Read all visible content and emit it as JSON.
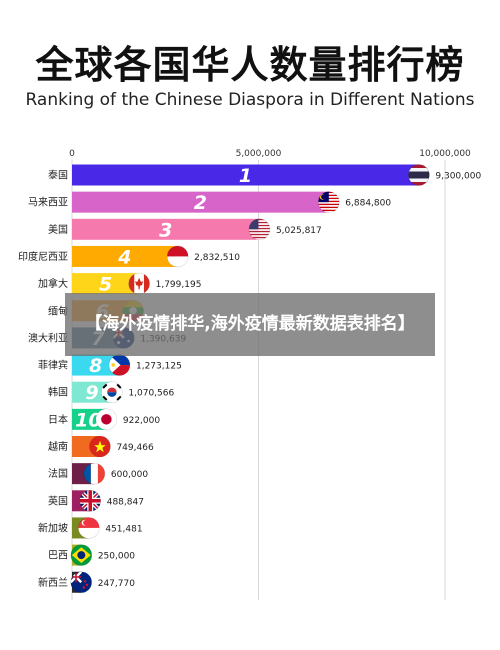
{
  "header": {
    "title_zh": "全球各国华人数量排行榜",
    "title_en": "Ranking of the Chinese Diaspora in Different Nations"
  },
  "overlay": {
    "text": "【海外疫情排华,海外疫情最新数据表排名】"
  },
  "chart_data": {
    "type": "bar",
    "orientation": "horizontal",
    "title": "Ranking of the Chinese Diaspora in Different Nations",
    "xlim": [
      0,
      10000000
    ],
    "xticks": [
      "0",
      "5,000,000",
      "10,000,000"
    ],
    "grid": true,
    "categories": [
      "泰国",
      "马来西亚",
      "美国",
      "印度尼西亚",
      "加拿大",
      "缅甸",
      "澳大利亚",
      "菲律宾",
      "韩国",
      "日本",
      "越南",
      "法国",
      "英国",
      "新加坡",
      "巴西",
      "新西兰"
    ],
    "ranks": [
      "1",
      "2",
      "3",
      "4",
      "5",
      "6",
      "7",
      "8",
      "9",
      "10",
      "",
      "",
      "",
      "",
      "",
      ""
    ],
    "values": [
      9300000,
      6884800,
      5025817,
      2832510,
      1799195,
      1637540,
      1390639,
      1273125,
      1070566,
      922000,
      749466,
      600000,
      488847,
      451481,
      250000,
      247770
    ],
    "value_labels": [
      "9,300,000",
      "6,884,800",
      "5,025,817",
      "2,832,510",
      "1,799,195",
      "",
      "1,390,639",
      "1,273,125",
      "1,070,566",
      "922,000",
      "749,466",
      "600,000",
      "488,847",
      "451,481",
      "250,000",
      "247,770"
    ],
    "colors": [
      "#4a28e8",
      "#d764c8",
      "#f579ac",
      "#ffaa00",
      "#ffd51a",
      "#ff9f1c",
      "#4a7592",
      "#3ad9ef",
      "#7ee8d3",
      "#15d18a",
      "#f06a1f",
      "#6e1f47",
      "#9e2062",
      "#7a8a1e",
      "#aab321",
      "#2b2b2b"
    ],
    "flags": [
      "thailand",
      "malaysia",
      "usa",
      "indonesia",
      "canada",
      "myanmar",
      "australia",
      "philippines",
      "korea",
      "japan",
      "vietnam",
      "france",
      "uk",
      "singapore",
      "brazil",
      "new-zealand"
    ]
  }
}
